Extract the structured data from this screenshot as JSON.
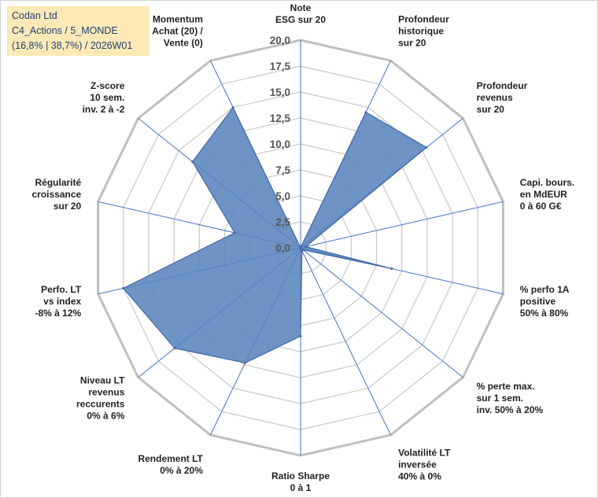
{
  "info": {
    "company": "Codan Ltd",
    "portfolio": "C4_Actions / 5_MONDE",
    "stats": "(16,8% | 38,7%) / 2026W01"
  },
  "colors": {
    "fill": "#5a84bd",
    "stroke": "#3f66a4",
    "spoke": "#4472c4",
    "ring": "#c8c8c8",
    "outer_ring": "#bfbfbf"
  },
  "chart_data": {
    "type": "radar",
    "title": "",
    "rmin": 0,
    "rmax": 20,
    "ticks": [
      "0,0",
      "2,5",
      "5,0",
      "7,5",
      "10,0",
      "12,5",
      "15,0",
      "17,5",
      "20,0"
    ],
    "categories": [
      [
        "Note",
        "ESG sur 20"
      ],
      [
        "Profondeur",
        "historique",
        "sur 20"
      ],
      [
        "Profondeur",
        "revenus",
        "sur 20"
      ],
      [
        "Capi. bours.",
        "en MdEUR",
        "0 à 60 G€"
      ],
      [
        "% perfo 1A",
        "positive",
        "50% à 80%"
      ],
      [
        "% perte max.",
        "sur 1 sem.",
        "inv. 50% à 20%"
      ],
      [
        "Volatilité LT",
        "inversée",
        "40% à 0%"
      ],
      [
        "Ratio Sharpe",
        "0 à 1"
      ],
      [
        "Rendement LT",
        "0% à 20%"
      ],
      [
        "Niveau LT",
        "revenus",
        "reccurents",
        "0% à 6%"
      ],
      [
        "Perfo. LT",
        "vs index",
        "-8% à 12%"
      ],
      [
        "Régularité",
        "croissance",
        "sur 20"
      ],
      [
        "Z-score",
        "10 sem.",
        "inv. 2 à -2"
      ],
      [
        "Momentum",
        "Achat (20) /",
        "Vente (0)"
      ]
    ],
    "series": [
      {
        "name": "Codan Ltd",
        "values": [
          0.0,
          14.5,
          15.5,
          0.5,
          9.0,
          0.3,
          0.3,
          8.5,
          12.3,
          15.5,
          17.5,
          6.5,
          13.3,
          15.0
        ]
      }
    ]
  }
}
